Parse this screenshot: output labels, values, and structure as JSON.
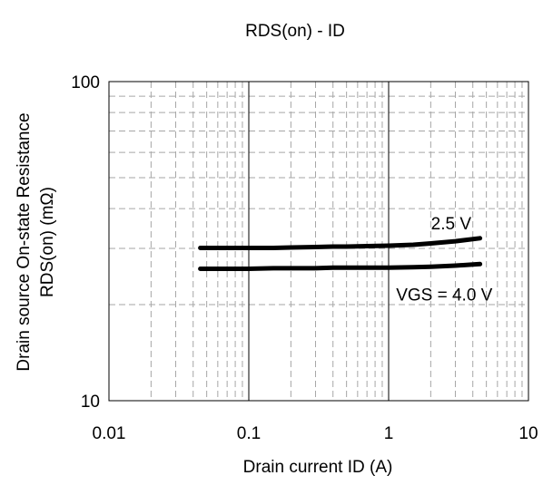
{
  "chart_data": {
    "type": "line",
    "title": "RDS(on) - ID",
    "xlabel": "Drain current ID (A)",
    "ylabel_line1": "Drain source On-state Resistance",
    "ylabel_line2": "RDS(on) (mΩ)",
    "x_scale": "log",
    "y_scale": "log",
    "xlim": [
      0.01,
      10
    ],
    "ylim": [
      10,
      100
    ],
    "x_ticks": [
      0.01,
      0.1,
      1,
      10
    ],
    "x_tick_labels": [
      "0.01",
      "0.1",
      "1",
      "10"
    ],
    "y_ticks": [
      10,
      100
    ],
    "y_tick_labels": [
      "10",
      "100"
    ],
    "grid": true,
    "legend": "none",
    "series": [
      {
        "name": "2.5 V",
        "x": [
          0.045,
          0.07,
          0.1,
          0.15,
          0.2,
          0.3,
          0.4,
          0.5,
          0.7,
          1.0,
          1.5,
          2.0,
          3.0,
          4.5
        ],
        "y": [
          30.1,
          30.1,
          30.1,
          30.1,
          30.2,
          30.3,
          30.4,
          30.4,
          30.5,
          30.6,
          30.8,
          31.1,
          31.6,
          32.3
        ],
        "color": "#000000"
      },
      {
        "name": "VGS = 4.0 V",
        "x": [
          0.045,
          0.07,
          0.1,
          0.15,
          0.2,
          0.3,
          0.4,
          0.5,
          0.7,
          1.0,
          1.5,
          2.0,
          3.0,
          4.5
        ],
        "y": [
          25.9,
          25.9,
          25.9,
          26.0,
          26.0,
          26.0,
          26.1,
          26.1,
          26.1,
          26.1,
          26.2,
          26.3,
          26.5,
          26.8
        ],
        "color": "#000000"
      }
    ],
    "annotations": [
      {
        "text": "2.5 V",
        "x": 2.8,
        "y": 36.0
      },
      {
        "text": "VGS = 4.0 V",
        "x": 2.5,
        "y": 21.6
      }
    ]
  }
}
